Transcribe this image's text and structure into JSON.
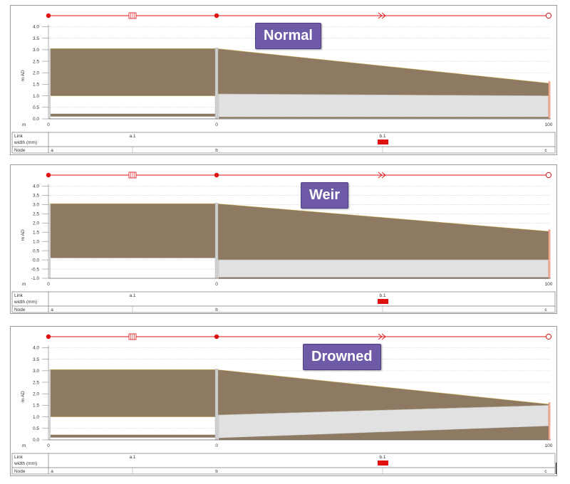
{
  "common": {
    "y_axis_label": "m AD",
    "x_unit_label": "m",
    "x_ticks": [
      "0",
      "0",
      "100"
    ],
    "table_rows": {
      "link": "Link",
      "width": "width (mm)",
      "node": "Node"
    },
    "links": [
      "a.1",
      "b.1"
    ],
    "nodes": [
      "a",
      "b",
      "c"
    ],
    "colors": {
      "soil": "#8e7a63",
      "pipe": "#e1e1e1",
      "accent": "#e01010",
      "grid": "#c6c6c6"
    }
  },
  "panels": [
    {
      "title": "Normal",
      "y_ticks": [
        "4.0",
        "3.5",
        "3.0",
        "2.5",
        "2.0",
        "1.5",
        "1.0",
        "0.5",
        "0.0"
      ],
      "ylim": [
        0,
        4.0
      ]
    },
    {
      "title": "Weir",
      "y_ticks": [
        "4.0",
        "3.5",
        "3.0",
        "2.5",
        "2.0",
        "1.5",
        "1.0",
        "0.5",
        "0.0",
        "-0.5",
        "-1.0"
      ],
      "ylim": [
        -1.0,
        4.0
      ]
    },
    {
      "title": "Drowned",
      "y_ticks": [
        "4.0",
        "3.5",
        "3.0",
        "2.5",
        "2.0",
        "1.5",
        "1.0",
        "0.5",
        "0.0"
      ],
      "ylim": [
        0,
        4.0
      ]
    }
  ]
}
